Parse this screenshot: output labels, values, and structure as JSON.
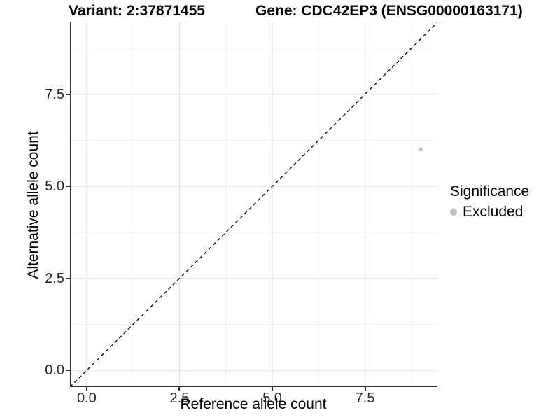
{
  "figure": {
    "title_left": "Variant: 2:37871455",
    "title_right": "Gene: CDC42EP3 (ENSG00000163171)"
  },
  "chart_data": {
    "type": "scatter",
    "title": "Variant: 2:37871455   Gene: CDC42EP3 (ENSG00000163171)",
    "xlabel": "Reference allele count",
    "ylabel": "Alternative allele count",
    "xlim": [
      -0.45,
      9.45
    ],
    "ylim": [
      -0.45,
      9.45
    ],
    "x_ticks": [
      "0.0",
      "2.5",
      "5.0",
      "7.5"
    ],
    "y_ticks": [
      "0.0",
      "2.5",
      "5.0",
      "7.5"
    ],
    "grid": "major and minor, light gray, on white background",
    "axis_lines": "left and bottom only",
    "series": [
      {
        "name": "Excluded",
        "color": "#bfbfbf",
        "marker": "circle",
        "points": [
          {
            "x": 9,
            "y": 6
          }
        ]
      }
    ],
    "reference_line": {
      "type": "abline",
      "slope": 1,
      "intercept": 0,
      "style": "dashed",
      "color": "#000000",
      "note": "identity line y = x"
    },
    "legend": {
      "title": "Significance",
      "position": "right",
      "items": [
        {
          "label": "Excluded",
          "color": "#bfbfbf",
          "marker": "circle"
        }
      ]
    }
  },
  "colors": {
    "background": "#ffffff",
    "axis_line": "#333333",
    "grid_major": "#e6e6e6",
    "grid_minor": "#f2f2f2",
    "tick_text": "#262626",
    "point": "#bfbfbf"
  }
}
